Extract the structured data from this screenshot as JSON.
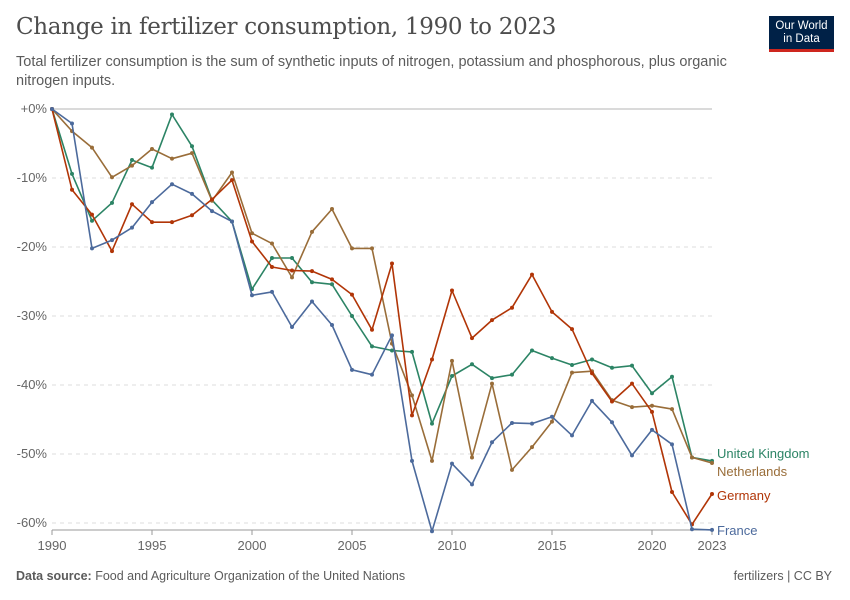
{
  "header": {
    "title": "Change in fertilizer consumption, 1990 to 2023",
    "subtitle": "Total fertilizer consumption is the sum of synthetic inputs of nitrogen, potassium and phosphorous, plus organic nitrogen inputs."
  },
  "logo": {
    "line1": "Our World",
    "line2": "in Data"
  },
  "footer": {
    "source_label": "Data source:",
    "source_text": "Food and Agriculture Organization of the United Nations",
    "license": "fertilizers | CC BY"
  },
  "chart_data": {
    "type": "line",
    "title": "Change in fertilizer consumption, 1990 to 2023",
    "xlabel": "",
    "ylabel": "",
    "xlim": [
      1990,
      2023
    ],
    "ylim": [
      -63,
      0
    ],
    "x_ticks": [
      1990,
      1995,
      2000,
      2005,
      2010,
      2015,
      2020,
      2023
    ],
    "y_ticks": [
      0,
      -10,
      -20,
      -30,
      -40,
      -50,
      -60
    ],
    "y_tick_labels": [
      "+0%",
      "-10%",
      "-20%",
      "-30%",
      "-40%",
      "-50%",
      "-60%"
    ],
    "grid": "horizontal dashed",
    "legend": "right (labels at line ends)",
    "x": [
      1990,
      1991,
      1992,
      1993,
      1994,
      1995,
      1996,
      1997,
      1998,
      1999,
      2000,
      2001,
      2002,
      2003,
      2004,
      2005,
      2006,
      2007,
      2008,
      2009,
      2010,
      2011,
      2012,
      2013,
      2014,
      2015,
      2016,
      2017,
      2018,
      2019,
      2020,
      2021,
      2022,
      2023
    ],
    "series": [
      {
        "name": "United Kingdom",
        "color": "#2c8465",
        "values": [
          0,
          -9.4,
          -16.2,
          -13.6,
          -7.4,
          -8.5,
          -0.8,
          -5.4,
          -13.2,
          -16.3,
          -26.1,
          -21.6,
          -21.6,
          -25.1,
          -25.4,
          -30.0,
          -34.4,
          -35.0,
          -35.2,
          -45.6,
          -38.7,
          -37.0,
          -39.0,
          -38.5,
          -35.0,
          -36.1,
          -37.1,
          -36.3,
          -37.5,
          -37.2,
          -41.2,
          -38.8,
          -50.5,
          -51.0
        ]
      },
      {
        "name": "Netherlands",
        "color": "#996d39",
        "values": [
          0,
          -3.2,
          -5.6,
          -9.9,
          -8.2,
          -5.8,
          -7.2,
          -6.4,
          -13.3,
          -9.2,
          -18.0,
          -19.5,
          -24.4,
          -17.8,
          -14.5,
          -20.2,
          -20.2,
          -34.0,
          -41.5,
          -51.0,
          -36.5,
          -50.5,
          -39.8,
          -52.3,
          -49.0,
          -45.3,
          -38.2,
          -38.0,
          -42.2,
          -43.2,
          -43.0,
          -43.5,
          -50.5,
          -51.3
        ]
      },
      {
        "name": "Germany",
        "color": "#b13507",
        "values": [
          0,
          -11.7,
          -15.3,
          -20.6,
          -13.8,
          -16.4,
          -16.4,
          -15.4,
          -13.1,
          -10.3,
          -19.2,
          -22.9,
          -23.4,
          -23.5,
          -24.7,
          -26.9,
          -32.0,
          -22.4,
          -44.4,
          -36.3,
          -26.3,
          -33.2,
          -30.6,
          -28.8,
          -24.0,
          -29.4,
          -31.9,
          -38.3,
          -42.4,
          -39.8,
          -43.9,
          -55.5,
          -60.2,
          -55.8
        ]
      },
      {
        "name": "France",
        "color": "#4c6a9c",
        "values": [
          0,
          -2.1,
          -20.2,
          -19.0,
          -17.2,
          -13.5,
          -10.9,
          -12.3,
          -14.8,
          -16.3,
          -27.0,
          -26.5,
          -31.6,
          -27.9,
          -31.3,
          -37.8,
          -38.5,
          -32.8,
          -51.0,
          -61.2,
          -51.4,
          -54.4,
          -48.3,
          -45.5,
          -45.6,
          -44.6,
          -47.3,
          -42.3,
          -45.4,
          -50.2,
          -46.5,
          -48.6,
          -60.9,
          -61.0
        ]
      }
    ]
  }
}
